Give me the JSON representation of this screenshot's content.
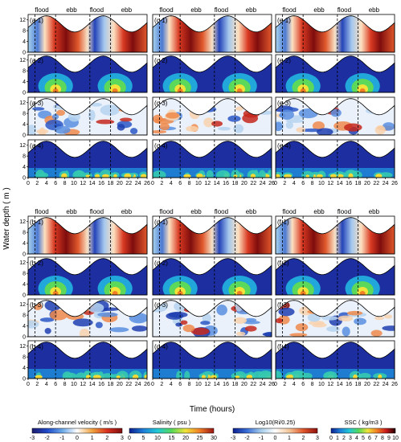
{
  "chart_data": {
    "type": "heatmap",
    "y_axis_label": "Water depth ( m )",
    "x_axis_label": "Time (hours)",
    "x_ticks": [
      0,
      2,
      4,
      6,
      8,
      10,
      12,
      14,
      16,
      18,
      20,
      22,
      24,
      26
    ],
    "y_ticks": [
      0,
      4,
      8,
      12
    ],
    "xlim": [
      0,
      26
    ],
    "ylim": [
      0,
      14
    ],
    "phase_labels": [
      "flood",
      "ebb",
      "flood",
      "ebb"
    ],
    "phase_boundaries_hours": [
      1.5,
      6,
      13.5,
      18
    ],
    "variables": [
      {
        "row": 1,
        "name": "Along-channel velocity",
        "unit": "( m/s )",
        "ticks": [
          "-3",
          "-2",
          "-1",
          "0",
          "1",
          "2",
          "3"
        ]
      },
      {
        "row": 2,
        "name": "Salinity",
        "unit": "( psu )",
        "ticks": [
          "0",
          "5",
          "10",
          "15",
          "20",
          "25",
          "30"
        ]
      },
      {
        "row": 3,
        "name": "Log10(Ri/0.25)",
        "unit": "",
        "ticks": [
          "-3",
          "-2",
          "-1",
          "0",
          "1",
          "2",
          "3"
        ]
      },
      {
        "row": 4,
        "name": "SSC",
        "unit": "( kg/m3 )",
        "ticks": [
          "0",
          "1",
          "2",
          "3",
          "4",
          "5",
          "6",
          "7",
          "8",
          "9",
          "10"
        ]
      }
    ],
    "panels": [
      {
        "group": "a",
        "labels": [
          "(a-1)",
          "(a-2)",
          "(a-3)",
          "(a-4)"
        ]
      },
      {
        "group": "c",
        "labels": [
          "(c-1)",
          "(c-2)",
          "(c-3)",
          "(c-4)"
        ]
      },
      {
        "group": "e",
        "labels": [
          "(e-1)",
          "(e-2)",
          "(e-3)",
          "(e-4)"
        ]
      },
      {
        "group": "b",
        "labels": [
          "(b-1)",
          "(b-2)",
          "(b-3)",
          "(b-4)"
        ]
      },
      {
        "group": "d",
        "labels": [
          "(d-1)",
          "(d-2)",
          "(d-3)",
          "(d-4)"
        ]
      },
      {
        "group": "f",
        "labels": [
          "(f-1)",
          "(f-2)",
          "(f-3)",
          "(f-4)"
        ]
      }
    ],
    "colorbars": [
      {
        "label": "Along-channel  velocity  ( m/s )",
        "ticks": [
          "-3",
          "-2",
          "-1",
          "0",
          "1",
          "2",
          "3"
        ],
        "colors": [
          "#1e1b6e",
          "#1f49c9",
          "#6aa8e8",
          "#ffffff",
          "#f1a33d",
          "#d8301f",
          "#7f0d0d"
        ]
      },
      {
        "label": "Salinity  ( psu )",
        "ticks": [
          "0",
          "5",
          "10",
          "15",
          "20",
          "25",
          "30"
        ],
        "colors": [
          "#0b1f8f",
          "#1f7fd8",
          "#22c9d6",
          "#55d85a",
          "#f1e33a",
          "#f17e25",
          "#9a1414"
        ]
      },
      {
        "label": "Log10(Ri/0.25)",
        "ticks": [
          "-3",
          "-2",
          "-1",
          "0",
          "1",
          "2",
          "3"
        ],
        "colors": [
          "#0b1f8f",
          "#3a6fd8",
          "#a8cdea",
          "#ffffff",
          "#f4c69a",
          "#e0572b",
          "#8f0f0f"
        ]
      },
      {
        "label": "SSC  ( kg/m3 )",
        "ticks": [
          "0",
          "1",
          "2",
          "3",
          "4",
          "5",
          "6",
          "7",
          "8",
          "9",
          "10"
        ],
        "colors": [
          "#0b1f8f",
          "#1f7fd8",
          "#22c9d6",
          "#55d85a",
          "#f1e33a",
          "#f17e25",
          "#c81a1a",
          "#200000"
        ]
      }
    ]
  }
}
